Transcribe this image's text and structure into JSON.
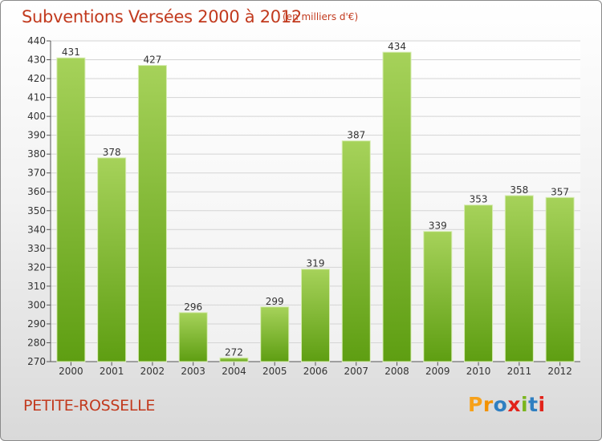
{
  "header": {
    "title": "Subventions Versées 2000 à 2012",
    "units": "(en milliers d'€)"
  },
  "footer": {
    "place": "PETITE-ROSSELLE",
    "brand_letters": [
      "P",
      "r",
      "o",
      "x",
      "i",
      "t",
      "i"
    ],
    "brand_colors": [
      "#f7a11a",
      "#f39200",
      "#2f7fc1",
      "#e2231a",
      "#7ab51d",
      "#2f7fc1",
      "#e2231a"
    ]
  },
  "colors": {
    "accent": "#c23a1e",
    "bar_top": "#a6d25a",
    "bar_bottom": "#5e9e12"
  },
  "chart_data": {
    "type": "bar",
    "categories": [
      "2000",
      "2001",
      "2002",
      "2003",
      "2004",
      "2005",
      "2006",
      "2007",
      "2008",
      "2009",
      "2010",
      "2011",
      "2012"
    ],
    "values": [
      431,
      378,
      427,
      296,
      272,
      299,
      319,
      387,
      434,
      339,
      353,
      358,
      357
    ],
    "ylim": [
      270,
      440
    ],
    "yticks": [
      270,
      280,
      290,
      300,
      310,
      320,
      330,
      340,
      350,
      360,
      370,
      380,
      390,
      400,
      410,
      420,
      430,
      440
    ],
    "grid": true
  }
}
